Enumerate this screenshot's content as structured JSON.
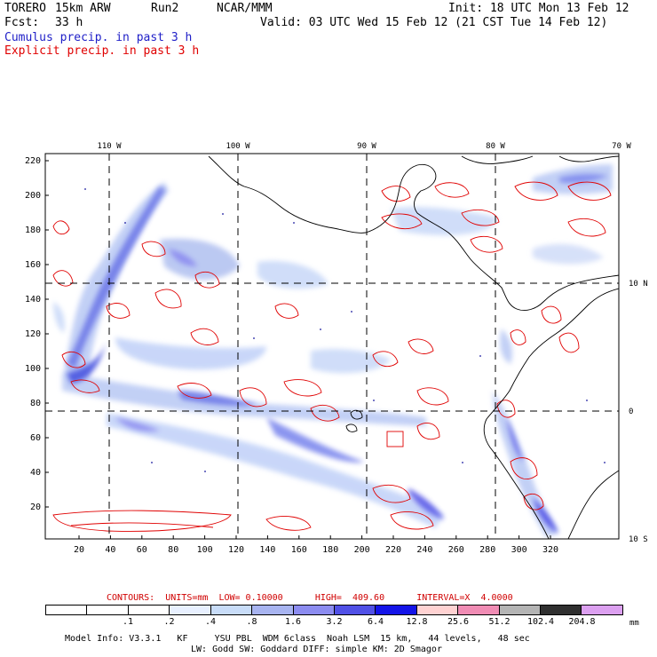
{
  "header": {
    "model": "TORERO",
    "resolution": "15km ARW",
    "run": "Run2",
    "org": "NCAR/MMM",
    "init": "Init: 18 UTC Mon 13 Feb 12",
    "fcst_label": "Fcst:",
    "fcst_value": "33 h",
    "valid": "Valid: 03 UTC Wed 15 Feb 12 (21 CST Tue 14 Feb 12)"
  },
  "legend": {
    "cumulus": "Cumulus precip. in past 3 h",
    "explicit": "Explicit precip. in past 3 h",
    "cumulus_color": "#2020c8",
    "explicit_color": "#e00000"
  },
  "map": {
    "lon_labels_top": [
      "110 W",
      "100 W",
      "90 W",
      "80 W",
      "70 W"
    ],
    "lat_labels_right": [
      "10 N",
      "0",
      "10 S"
    ],
    "y_ticks": [
      "220",
      "200",
      "180",
      "160",
      "140",
      "120",
      "100",
      "80",
      "60",
      "40",
      "20"
    ],
    "x_ticks": [
      "20",
      "40",
      "60",
      "80",
      "100",
      "120",
      "140",
      "160",
      "180",
      "200",
      "220",
      "240",
      "260",
      "280",
      "300",
      "320"
    ]
  },
  "contours": {
    "label": "CONTOURS:",
    "units": "UNITS=mm",
    "low": "LOW= 0.10000",
    "high": "HIGH=  409.60",
    "interval": "INTERVAL=X  4.0000"
  },
  "colorbar": {
    "labels": [
      ".1",
      ".2",
      ".4",
      ".8",
      "1.6",
      "3.2",
      "6.4",
      "12.8",
      "25.6",
      "51.2",
      "102.4",
      "204.8"
    ],
    "unit": "mm",
    "colors": [
      "#ffffff",
      "#ffffff",
      "#ffffff",
      "#e8f0ff",
      "#c8dcf8",
      "#a8b4f0",
      "#8c8cf0",
      "#5050e6",
      "#1414e8",
      "#ffd2d2",
      "#f08cb4",
      "#b4b4b4",
      "#303030",
      "#dca0f0"
    ]
  },
  "model_info": {
    "line1": "Model Info: V3.3.1   KF     YSU PBL  WDM 6class  Noah LSM  15 km,   44 levels,   48 sec",
    "line2": "LW: Godd SW: Goddard DIFF: simple KM: 2D Smagor"
  }
}
